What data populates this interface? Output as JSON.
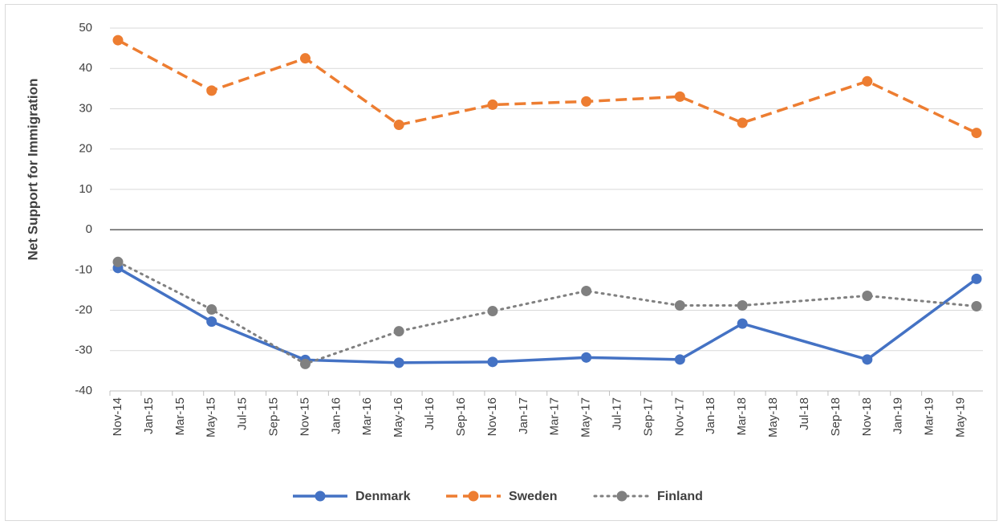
{
  "chart_data": {
    "type": "line",
    "y_label": "Net Support for Immigration",
    "x": [
      "2014-11",
      "2015-05",
      "2015-11",
      "2016-05",
      "2016-11",
      "2017-05",
      "2017-11",
      "2018-03",
      "2018-11",
      "2019-06"
    ],
    "xlim": [
      "2014-11",
      "2019-06"
    ],
    "xticks": [
      {
        "value": "2014-11",
        "label": "Nov-14"
      },
      {
        "value": "2015-01",
        "label": "Jan-15"
      },
      {
        "value": "2015-03",
        "label": "Mar-15"
      },
      {
        "value": "2015-05",
        "label": "May-15"
      },
      {
        "value": "2015-07",
        "label": "Jul-15"
      },
      {
        "value": "2015-09",
        "label": "Sep-15"
      },
      {
        "value": "2015-11",
        "label": "Nov-15"
      },
      {
        "value": "2016-01",
        "label": "Jan-16"
      },
      {
        "value": "2016-03",
        "label": "Mar-16"
      },
      {
        "value": "2016-05",
        "label": "May-16"
      },
      {
        "value": "2016-07",
        "label": "Jul-16"
      },
      {
        "value": "2016-09",
        "label": "Sep-16"
      },
      {
        "value": "2016-11",
        "label": "Nov-16"
      },
      {
        "value": "2017-01",
        "label": "Jan-17"
      },
      {
        "value": "2017-03",
        "label": "Mar-17"
      },
      {
        "value": "2017-05",
        "label": "May-17"
      },
      {
        "value": "2017-07",
        "label": "Jul-17"
      },
      {
        "value": "2017-09",
        "label": "Sep-17"
      },
      {
        "value": "2017-11",
        "label": "Nov-17"
      },
      {
        "value": "2018-01",
        "label": "Jan-18"
      },
      {
        "value": "2018-03",
        "label": "Mar-18"
      },
      {
        "value": "2018-05",
        "label": "May-18"
      },
      {
        "value": "2018-07",
        "label": "Jul-18"
      },
      {
        "value": "2018-09",
        "label": "Sep-18"
      },
      {
        "value": "2018-11",
        "label": "Nov-18"
      },
      {
        "value": "2019-01",
        "label": "Jan-19"
      },
      {
        "value": "2019-03",
        "label": "Mar-19"
      },
      {
        "value": "2019-05",
        "label": "May-19"
      }
    ],
    "ylim": [
      -40,
      50
    ],
    "yticks": [
      -40,
      -30,
      -20,
      -10,
      0,
      10,
      20,
      30,
      40,
      50
    ],
    "grid": true,
    "legend": "bottom",
    "series": [
      {
        "name": "Denmark",
        "color": "#4472c4",
        "line_style": "solid",
        "values": [
          -9.5,
          -22.8,
          -32.3,
          -33,
          -32.8,
          -31.7,
          -32.2,
          -23.3,
          -32.2,
          -12.2
        ]
      },
      {
        "name": "Sweden",
        "color": "#ed7d31",
        "line_style": "dashed",
        "values": [
          47,
          34.5,
          42.5,
          26,
          31,
          31.8,
          33,
          26.5,
          36.8,
          24
        ]
      },
      {
        "name": "Finland",
        "color": "#808080",
        "line_style": "dotted",
        "values": [
          -8,
          -19.8,
          -33.3,
          -25.2,
          -20.2,
          -15.2,
          -18.8,
          -18.8,
          -16.4,
          -19
        ]
      }
    ]
  }
}
